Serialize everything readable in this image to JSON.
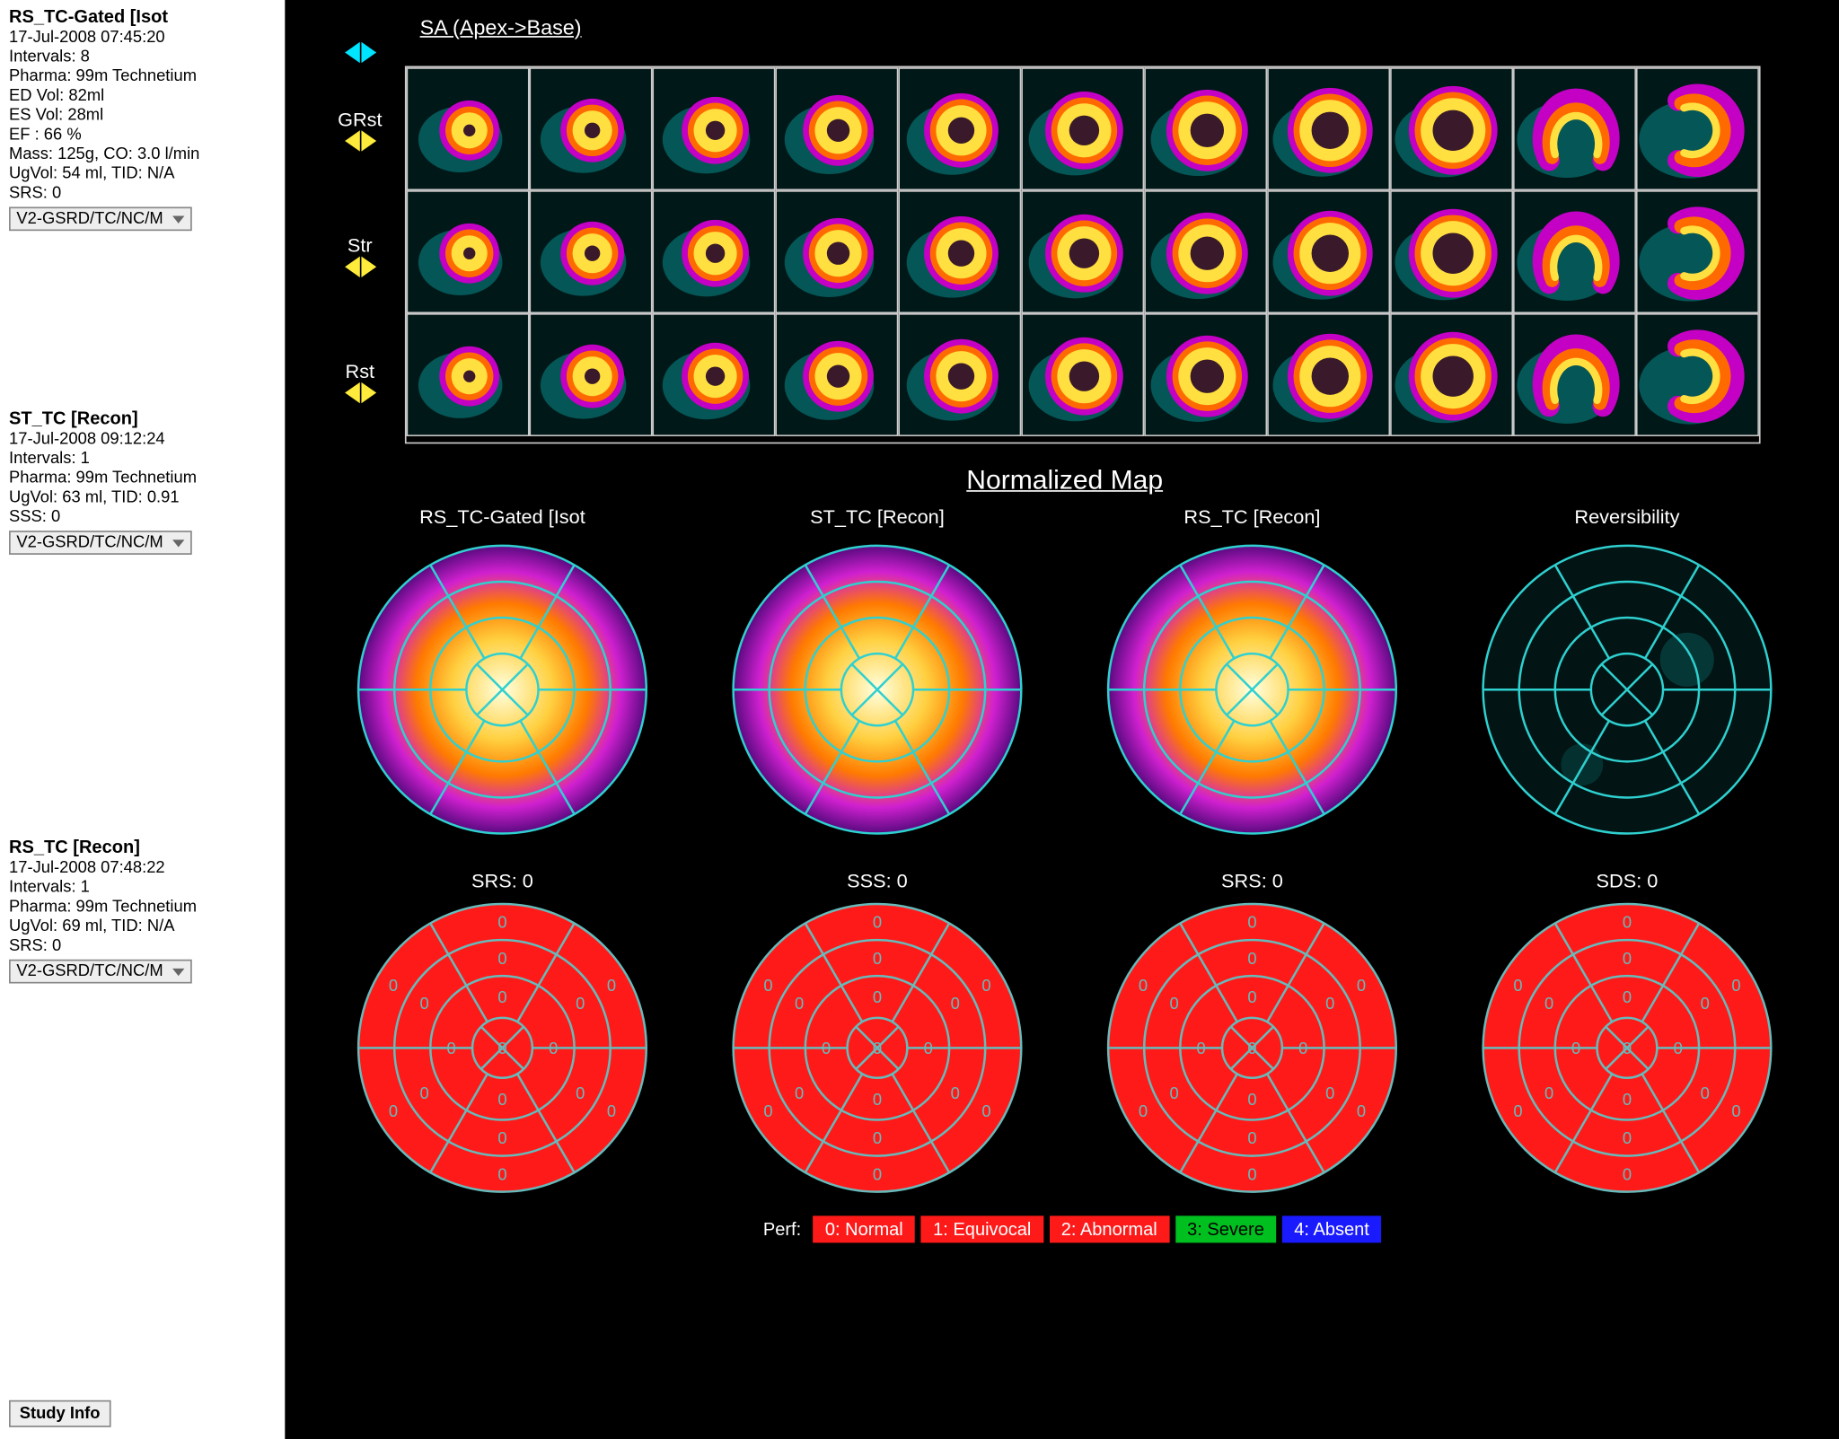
{
  "sidebar": {
    "studies": [
      {
        "title": "RS_TC-Gated [Isot",
        "lines": [
          "17-Jul-2008 07:45:20",
          "Intervals: 8",
          "Pharma: 99m Technetium",
          "ED Vol:  82ml",
          "ES Vol:  28ml",
          "EF : 66 %",
          "Mass: 125g, CO: 3.0 l/min",
          "UgVol:  54 ml, TID: N/A",
          "SRS: 0"
        ],
        "dropdown": "V2-GSRD/TC/NC/M"
      },
      {
        "title": "ST_TC [Recon]",
        "lines": [
          "17-Jul-2008 09:12:24",
          "Intervals: 1",
          "Pharma: 99m Technetium",
          "UgVol:  63 ml, TID: 0.91",
          "SSS: 0"
        ],
        "dropdown": "V2-GSRD/TC/NC/M"
      },
      {
        "title": "RS_TC [Recon]",
        "lines": [
          "17-Jul-2008 07:48:22",
          "Intervals: 1",
          "Pharma: 99m Technetium",
          "UgVol:  69 ml, TID: N/A",
          "SRS: 0"
        ],
        "dropdown": "V2-GSRD/TC/NC/M"
      }
    ],
    "study_info_btn": "Study Info"
  },
  "slices": {
    "header": "SA (Apex->Base)",
    "rows": [
      "GRst",
      "Str",
      "Rst"
    ],
    "cols": 11,
    "grid_color": "#cccccc",
    "colormap": {
      "bg": "#001818",
      "halo": "#0a8a8a",
      "outer": "#c400c4",
      "mid": "#ff6a00",
      "inner": "#ffe040",
      "core": "#ffffb0",
      "hole": "#3a1a2a"
    }
  },
  "normalized": {
    "title": "Normalized Map",
    "maps": [
      {
        "label": "RS_TC-Gated [Isot",
        "type": "color"
      },
      {
        "label": "ST_TC [Recon]",
        "type": "color"
      },
      {
        "label": "RS_TC [Recon]",
        "type": "color"
      },
      {
        "label": "Reversibility",
        "type": "dark"
      }
    ],
    "grid_color": "#2fd0d0",
    "colormap": {
      "edge": "#5a0a80",
      "ring1": "#d020d0",
      "ring2": "#ff7a00",
      "ring3": "#ffd040",
      "center": "#ffffe0"
    }
  },
  "scores": {
    "items": [
      {
        "label": "SRS: 0"
      },
      {
        "label": "SSS: 0"
      },
      {
        "label": "SRS: 0"
      },
      {
        "label": "SDS: 0"
      }
    ],
    "fill": "#ff1a1a",
    "grid": "#6bb",
    "text": "#6bb",
    "seg_value": "0"
  },
  "legend": {
    "prefix": "Perf:",
    "items": [
      {
        "text": "0: Normal",
        "bg": "#ff1a1a",
        "fg": "#fff"
      },
      {
        "text": "1: Equivocal",
        "bg": "#ff1a1a",
        "fg": "#fff"
      },
      {
        "text": "2: Abnormal",
        "bg": "#ff1a1a",
        "fg": "#fff"
      },
      {
        "text": "3: Severe",
        "bg": "#00c020",
        "fg": "#000"
      },
      {
        "text": "4: Absent",
        "bg": "#1a1aff",
        "fg": "#fff"
      }
    ]
  }
}
